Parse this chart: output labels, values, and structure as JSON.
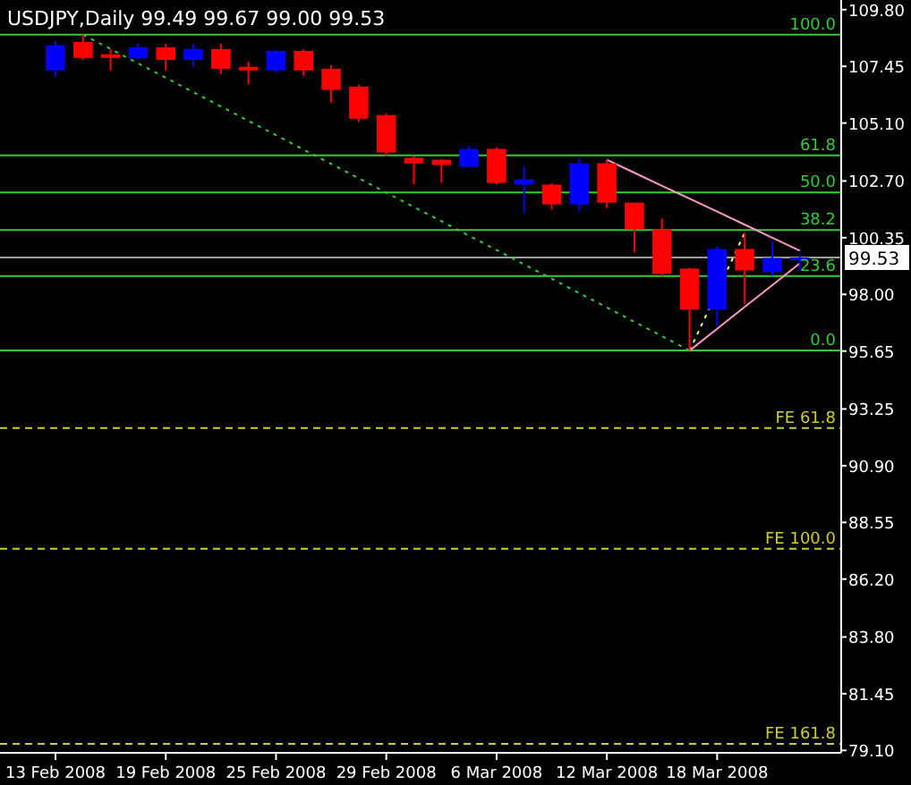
{
  "chart_data": {
    "type": "candlestick",
    "title": "USDJPY,Daily  99.49 99.67 99.00 99.53",
    "categories": [
      "13 Feb 2008",
      null,
      null,
      null,
      "19 Feb 2008",
      null,
      null,
      null,
      "25 Feb 2008",
      null,
      null,
      null,
      "29 Feb 2008",
      null,
      null,
      null,
      "6 Mar 2008",
      null,
      null,
      null,
      "12 Mar 2008",
      null,
      null,
      null,
      "18 Mar 2008",
      null,
      null,
      null
    ],
    "ylim": [
      79.0,
      110.2
    ],
    "yticks": [
      {
        "value": 79.1,
        "label": "79.10"
      },
      {
        "value": 81.45,
        "label": "81.45"
      },
      {
        "value": 83.8,
        "label": "83.80"
      },
      {
        "value": 86.2,
        "label": "86.20"
      },
      {
        "value": 88.55,
        "label": "88.55"
      },
      {
        "value": 90.9,
        "label": "90.90"
      },
      {
        "value": 93.25,
        "label": "93.25"
      },
      {
        "value": 95.65,
        "label": "95.65"
      },
      {
        "value": 98.0,
        "label": "98.00"
      },
      {
        "value": 100.35,
        "label": "100.35"
      },
      {
        "value": 102.7,
        "label": "102.70"
      },
      {
        "value": 105.1,
        "label": "105.10"
      },
      {
        "value": 107.45,
        "label": "107.45"
      },
      {
        "value": 109.8,
        "label": "109.80"
      }
    ],
    "colors": [
      "#0000ff",
      "#ff0000",
      "#ff0000",
      "#0000ff",
      "#ff0000",
      "#0000ff",
      "#ff0000",
      "#ff0000",
      "#0000ff",
      "#ff0000",
      "#ff0000",
      "#ff0000",
      "#ff0000",
      "#ff0000",
      "#ff0000",
      "#0000ff",
      "#ff0000",
      "#0000ff",
      "#ff0000",
      "#0000ff",
      "#ff0000",
      "#ff0000",
      "#ff0000",
      "#ff0000",
      "#0000ff",
      "#ff0000",
      "#0000ff",
      "#0000ff"
    ],
    "ohlc": [
      [
        107.28,
        108.5,
        107.0,
        108.32
      ],
      [
        108.46,
        108.76,
        107.72,
        107.8
      ],
      [
        107.95,
        108.17,
        107.28,
        107.8
      ],
      [
        107.8,
        108.39,
        107.72,
        108.24
      ],
      [
        108.24,
        108.39,
        107.28,
        107.72
      ],
      [
        107.72,
        108.39,
        107.43,
        108.17
      ],
      [
        108.17,
        108.39,
        107.13,
        107.35
      ],
      [
        107.43,
        107.65,
        106.69,
        107.28
      ],
      [
        107.28,
        108.15,
        107.2,
        108.09
      ],
      [
        108.09,
        108.15,
        107.06,
        107.28
      ],
      [
        107.35,
        107.5,
        105.95,
        106.47
      ],
      [
        106.61,
        106.69,
        105.14,
        105.28
      ],
      [
        105.43,
        105.5,
        103.73,
        103.88
      ],
      [
        103.66,
        103.73,
        102.55,
        103.43
      ],
      [
        103.58,
        103.6,
        102.62,
        103.36
      ],
      [
        103.29,
        104.17,
        103.29,
        104.03
      ],
      [
        104.03,
        104.1,
        102.55,
        102.62
      ],
      [
        102.55,
        103.29,
        101.36,
        102.77
      ],
      [
        102.55,
        102.6,
        101.51,
        101.73
      ],
      [
        101.73,
        103.66,
        101.44,
        103.43
      ],
      [
        103.43,
        103.58,
        101.58,
        101.8
      ],
      [
        101.8,
        101.8,
        99.74,
        100.7
      ],
      [
        100.7,
        101.14,
        98.75,
        98.85
      ],
      [
        99.07,
        99.1,
        95.67,
        97.37
      ],
      [
        97.37,
        100.0,
        96.7,
        99.88
      ],
      [
        99.88,
        100.55,
        97.59,
        98.99
      ],
      [
        98.92,
        100.18,
        98.77,
        99.51
      ],
      [
        99.49,
        99.67,
        99.0,
        99.53
      ]
    ],
    "series": [
      {
        "type": "line",
        "color": "#33cc33",
        "line_style": "dotted",
        "values": [
          null,
          108.76,
          108.17,
          107.57,
          106.98,
          106.38,
          105.79,
          105.19,
          104.6,
          104.0,
          103.41,
          102.81,
          102.22,
          101.62,
          101.03,
          100.43,
          99.84,
          99.24,
          98.65,
          98.05,
          97.46,
          96.86,
          96.27,
          95.67,
          null,
          null,
          null,
          null
        ]
      },
      {
        "type": "line",
        "color": "#ffff66",
        "line_style": "dotted",
        "values": [
          null,
          null,
          null,
          null,
          null,
          null,
          null,
          null,
          null,
          null,
          null,
          null,
          null,
          null,
          null,
          null,
          null,
          null,
          null,
          null,
          null,
          null,
          null,
          95.67,
          null,
          100.55,
          null,
          null
        ]
      },
      {
        "type": "line",
        "color": "#ff99cc",
        "line_style": "solid",
        "values": [
          null,
          null,
          null,
          null,
          null,
          null,
          null,
          null,
          null,
          null,
          null,
          null,
          null,
          null,
          null,
          null,
          null,
          null,
          null,
          null,
          103.58,
          103.04,
          102.5,
          101.97,
          101.43,
          100.89,
          100.35,
          99.81
        ]
      },
      {
        "type": "line",
        "color": "#ff99cc",
        "line_style": "solid",
        "values": [
          null,
          null,
          null,
          null,
          null,
          null,
          null,
          null,
          null,
          null,
          null,
          null,
          null,
          null,
          null,
          null,
          null,
          null,
          null,
          null,
          null,
          null,
          null,
          95.67,
          96.57,
          97.48,
          98.38,
          99.29
        ]
      }
    ],
    "ref_lines": [
      {
        "axis": "y",
        "value": 108.76,
        "color": "#33cc33",
        "line_style": "solid"
      },
      {
        "axis": "y",
        "value": 103.76,
        "color": "#33cc33",
        "line_style": "solid"
      },
      {
        "axis": "y",
        "value": 102.22,
        "color": "#33cc33",
        "line_style": "solid"
      },
      {
        "axis": "y",
        "value": 100.67,
        "color": "#33cc33",
        "line_style": "solid"
      },
      {
        "axis": "y",
        "value": 98.76,
        "color": "#33cc33",
        "line_style": "solid"
      },
      {
        "axis": "y",
        "value": 95.67,
        "color": "#33cc33",
        "line_style": "solid"
      },
      {
        "axis": "y",
        "value": 92.46,
        "color": "#cccc33",
        "line_style": "dashed"
      },
      {
        "axis": "y",
        "value": 87.46,
        "color": "#cccc33",
        "line_style": "dashed"
      },
      {
        "axis": "y",
        "value": 79.37,
        "color": "#cccc33",
        "line_style": "dashed"
      },
      {
        "axis": "y",
        "value": 99.53,
        "label": "99.53",
        "color": "#a0a0a0",
        "line_style": "solid"
      }
    ],
    "annotations": [
      {
        "text": "100.0",
        "y": 108.76
      },
      {
        "text": "61.8",
        "y": 103.76
      },
      {
        "text": "50.0",
        "y": 102.22
      },
      {
        "text": "38.2",
        "y": 100.67
      },
      {
        "text": "23.6",
        "y": 98.76
      },
      {
        "text": "0.0",
        "y": 95.67
      },
      {
        "text": "FE 61.8",
        "y": 92.46
      },
      {
        "text": "FE 100.0",
        "y": 87.46
      },
      {
        "text": "FE 161.8",
        "y": 79.37
      }
    ]
  }
}
